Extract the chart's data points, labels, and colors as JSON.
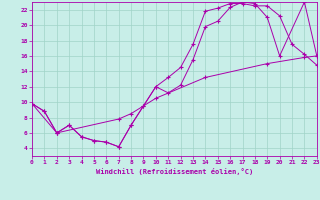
{
  "background_color": "#c8eee8",
  "grid_color": "#a0d4c8",
  "line_color": "#aa00aa",
  "xlim": [
    0,
    23
  ],
  "ylim": [
    3,
    23
  ],
  "xticks": [
    0,
    1,
    2,
    3,
    4,
    5,
    6,
    7,
    8,
    9,
    10,
    11,
    12,
    13,
    14,
    15,
    16,
    17,
    18,
    19,
    20,
    21,
    22,
    23
  ],
  "yticks": [
    4,
    6,
    8,
    10,
    12,
    14,
    16,
    18,
    20,
    22
  ],
  "xlabel": "Windchill (Refroidissement éolien,°C)",
  "line1_x": [
    0,
    1,
    2,
    3,
    4,
    5,
    6,
    7,
    8,
    9,
    10,
    11,
    12,
    13,
    14,
    15,
    16,
    17,
    18,
    19,
    20,
    22,
    23
  ],
  "line1_y": [
    9.8,
    8.8,
    6.0,
    7.0,
    5.5,
    5.0,
    4.8,
    4.2,
    7.0,
    9.5,
    12.0,
    11.2,
    12.2,
    15.5,
    19.8,
    20.5,
    22.3,
    23.0,
    22.8,
    21.0,
    16.0,
    23.0,
    16.0
  ],
  "line2_x": [
    0,
    1,
    2,
    3,
    4,
    5,
    6,
    7,
    8,
    9,
    10,
    11,
    12,
    13,
    14,
    15,
    16,
    17,
    18,
    19,
    20,
    21,
    22,
    23
  ],
  "line2_y": [
    9.8,
    8.8,
    6.0,
    7.0,
    5.5,
    5.0,
    4.8,
    4.2,
    7.0,
    9.5,
    12.0,
    13.2,
    14.5,
    17.5,
    21.8,
    22.2,
    22.8,
    22.8,
    22.5,
    22.5,
    21.2,
    17.5,
    16.2,
    14.8
  ],
  "line3_x": [
    0,
    2,
    7,
    8,
    10,
    14,
    19,
    22,
    23
  ],
  "line3_y": [
    9.8,
    6.0,
    7.8,
    8.5,
    10.5,
    13.2,
    15.0,
    15.8,
    16.0
  ]
}
